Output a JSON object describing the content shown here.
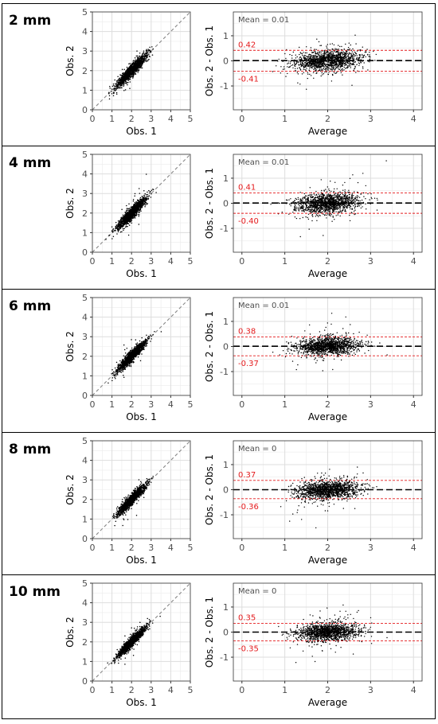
{
  "colors": {
    "points": "#000000",
    "loa": "#e41a1c",
    "identity": "#888888",
    "grid": "#ebebeb",
    "panel_border": "#333333"
  },
  "chart_data": [
    {
      "panel_title": "2 mm",
      "scatter": {
        "type": "scatter",
        "xlabel": "Obs. 1",
        "ylabel": "Obs. 2",
        "xlim": [
          0,
          5
        ],
        "ylim": [
          0,
          5
        ],
        "xticks": [
          "0",
          "1",
          "2",
          "3",
          "4",
          "5"
        ],
        "yticks": [
          "0",
          "1",
          "2",
          "3",
          "4",
          "5"
        ],
        "identity_line": true,
        "n_points": 1400,
        "x_mean": 2.0,
        "x_sd": 0.38,
        "noise_sd": 0.15
      },
      "bland_altman": {
        "type": "scatter",
        "xlabel": "Average",
        "ylabel": "Obs. 2 - Obs. 1",
        "xlim": [
          -0.2,
          4.2
        ],
        "ylim": [
          -1.95,
          1.95
        ],
        "xticks": [
          "0",
          "1",
          "2",
          "3",
          "4"
        ],
        "yticks": [
          "-1",
          "0",
          "1"
        ],
        "mean_label": "Mean = 0.01",
        "mean": 0.01,
        "upper_loa": 0.42,
        "lower_loa": -0.41,
        "upper_label": "0.42",
        "lower_label": "-0.41",
        "n_points": 1400,
        "diff_sd": 0.21
      }
    },
    {
      "panel_title": "4 mm",
      "scatter": {
        "type": "scatter",
        "xlabel": "Obs. 1",
        "ylabel": "Obs. 2",
        "xlim": [
          0,
          5
        ],
        "ylim": [
          0,
          5
        ],
        "xticks": [
          "0",
          "1",
          "2",
          "3",
          "4",
          "5"
        ],
        "yticks": [
          "0",
          "1",
          "2",
          "3",
          "4",
          "5"
        ],
        "identity_line": true,
        "n_points": 1400,
        "x_mean": 2.0,
        "x_sd": 0.37,
        "noise_sd": 0.15
      },
      "bland_altman": {
        "type": "scatter",
        "xlabel": "Average",
        "ylabel": "Obs. 2 - Obs. 1",
        "xlim": [
          -0.2,
          4.2
        ],
        "ylim": [
          -1.95,
          1.95
        ],
        "xticks": [
          "0",
          "1",
          "2",
          "3",
          "4"
        ],
        "yticks": [
          "-1",
          "0",
          "1"
        ],
        "mean_label": "Mean = 0.01",
        "mean": 0.01,
        "upper_loa": 0.41,
        "lower_loa": -0.4,
        "upper_label": "0.41",
        "lower_label": "-0.40",
        "n_points": 1400,
        "diff_sd": 0.205
      }
    },
    {
      "panel_title": "6 mm",
      "scatter": {
        "type": "scatter",
        "xlabel": "Obs. 1",
        "ylabel": "Obs. 2",
        "xlim": [
          0,
          5
        ],
        "ylim": [
          0,
          5
        ],
        "xticks": [
          "0",
          "1",
          "2",
          "3",
          "4",
          "5"
        ],
        "yticks": [
          "0",
          "1",
          "2",
          "3",
          "4",
          "5"
        ],
        "identity_line": true,
        "n_points": 1400,
        "x_mean": 2.0,
        "x_sd": 0.36,
        "noise_sd": 0.14
      },
      "bland_altman": {
        "type": "scatter",
        "xlabel": "Average",
        "ylabel": "Obs. 2 - Obs. 1",
        "xlim": [
          -0.2,
          4.2
        ],
        "ylim": [
          -1.95,
          1.95
        ],
        "xticks": [
          "0",
          "1",
          "2",
          "3",
          "4"
        ],
        "yticks": [
          "-1",
          "0",
          "1"
        ],
        "mean_label": "Mean = 0.01",
        "mean": 0.01,
        "upper_loa": 0.38,
        "lower_loa": -0.37,
        "upper_label": "0.38",
        "lower_label": "-0.37",
        "n_points": 1400,
        "diff_sd": 0.19
      }
    },
    {
      "panel_title": "8 mm",
      "scatter": {
        "type": "scatter",
        "xlabel": "Obs. 1",
        "ylabel": "Obs. 2",
        "xlim": [
          0,
          5
        ],
        "ylim": [
          0,
          5
        ],
        "xticks": [
          "0",
          "1",
          "2",
          "3",
          "4",
          "5"
        ],
        "yticks": [
          "0",
          "1",
          "2",
          "3",
          "4",
          "5"
        ],
        "identity_line": true,
        "n_points": 1400,
        "x_mean": 2.0,
        "x_sd": 0.36,
        "noise_sd": 0.13
      },
      "bland_altman": {
        "type": "scatter",
        "xlabel": "Average",
        "ylabel": "Obs. 2 - Obs. 1",
        "xlim": [
          -0.2,
          4.2
        ],
        "ylim": [
          -1.95,
          1.95
        ],
        "xticks": [
          "0",
          "1",
          "2",
          "3",
          "4"
        ],
        "yticks": [
          "-1",
          "0",
          "1"
        ],
        "mean_label": "Mean = 0",
        "mean": 0.0,
        "upper_loa": 0.37,
        "lower_loa": -0.36,
        "upper_label": "0.37",
        "lower_label": "-0.36",
        "n_points": 1400,
        "diff_sd": 0.185
      }
    },
    {
      "panel_title": "10 mm",
      "scatter": {
        "type": "scatter",
        "xlabel": "Obs. 1",
        "ylabel": "Obs. 2",
        "xlim": [
          0,
          5
        ],
        "ylim": [
          0,
          5
        ],
        "xticks": [
          "0",
          "1",
          "2",
          "3",
          "4",
          "5"
        ],
        "yticks": [
          "0",
          "1",
          "2",
          "3",
          "4",
          "5"
        ],
        "identity_line": true,
        "n_points": 1400,
        "x_mean": 2.0,
        "x_sd": 0.36,
        "noise_sd": 0.12
      },
      "bland_altman": {
        "type": "scatter",
        "xlabel": "Average",
        "ylabel": "Obs. 2 - Obs. 1",
        "xlim": [
          -0.2,
          4.2
        ],
        "ylim": [
          -1.95,
          1.95
        ],
        "xticks": [
          "0",
          "1",
          "2",
          "3",
          "4"
        ],
        "yticks": [
          "-1",
          "0",
          "1"
        ],
        "mean_label": "Mean = 0",
        "mean": 0.0,
        "upper_loa": 0.35,
        "lower_loa": -0.35,
        "upper_label": "0.35",
        "lower_label": "-0.35",
        "n_points": 1400,
        "diff_sd": 0.18
      }
    }
  ]
}
